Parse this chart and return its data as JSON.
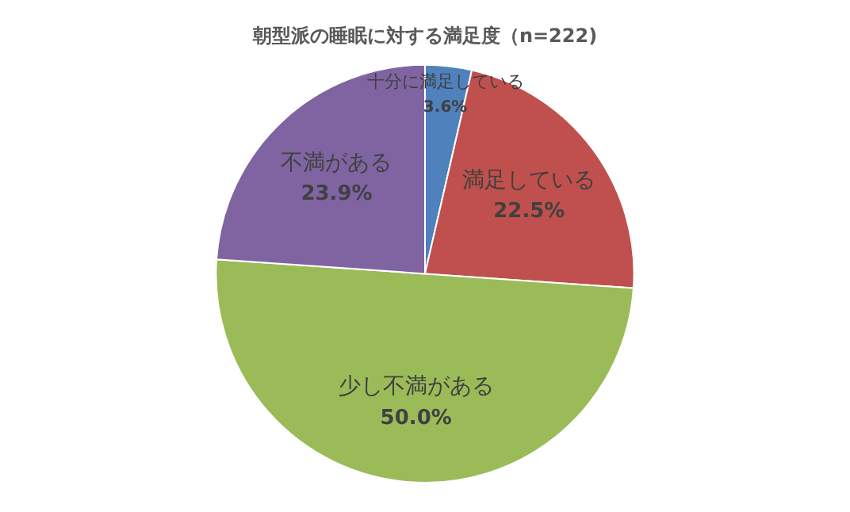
{
  "chart_data": {
    "type": "pie",
    "title": "朝型派の睡眠に対する満足度（n=222)",
    "categories": [
      "十分に満足している",
      "満足している",
      "少し不満がある",
      "不満がある"
    ],
    "values": [
      3.6,
      22.5,
      50.0,
      23.9
    ],
    "value_labels": [
      "3.6%",
      "22.5%",
      "50.0%",
      "23.9%"
    ],
    "colors": [
      "#4f81bd",
      "#c0504d",
      "#9bbb59",
      "#8064a2"
    ],
    "legend": false
  }
}
